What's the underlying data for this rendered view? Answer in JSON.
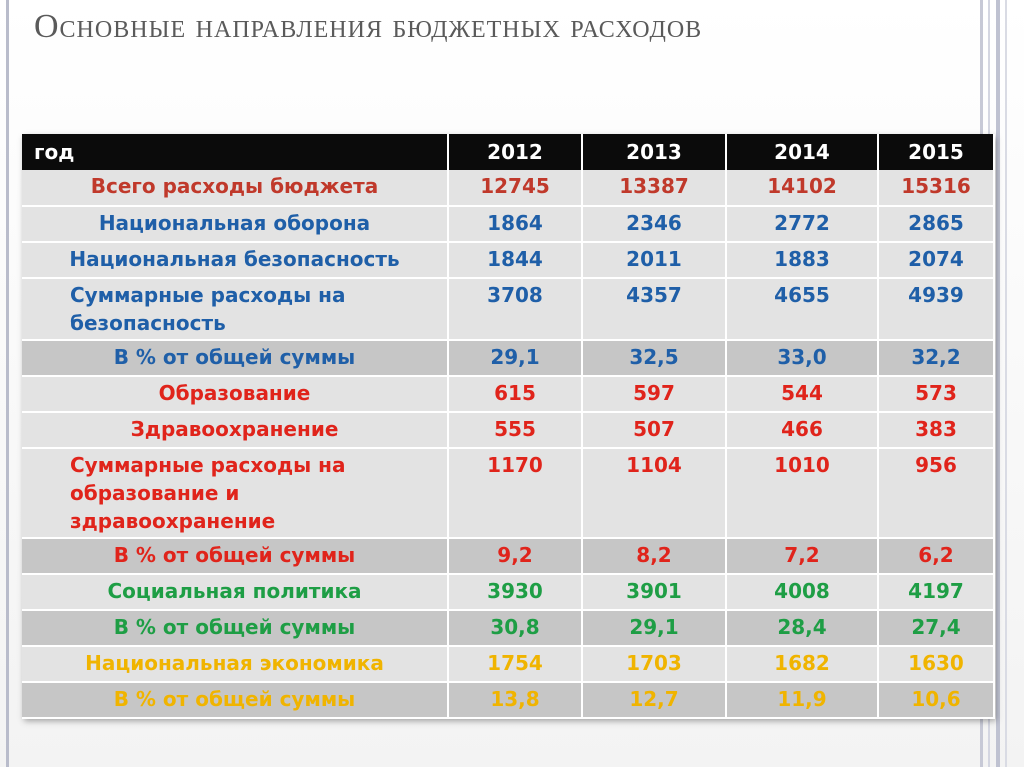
{
  "slide": {
    "title": "Основные направления бюджетных расходов"
  },
  "colors": {
    "header_bg": "#0b0b0b",
    "row_light": "#e3e3e3",
    "row_dark": "#c6c6c6",
    "total_red": "#c0392b",
    "blue": "#1f5fa8",
    "red": "#e0241b",
    "green": "#1e9e45",
    "yellow": "#f0b400"
  },
  "table": {
    "header": [
      "год",
      "2012",
      "2013",
      "2014",
      "2015"
    ],
    "rows": [
      {
        "label": "Всего расходы бюджета",
        "values": [
          "12745",
          "13387",
          "14102",
          "15316"
        ],
        "color": "#c0392b",
        "shade": "light"
      },
      {
        "label": "Национальная оборона",
        "values": [
          "1864",
          "2346",
          "2772",
          "2865"
        ],
        "color": "#1f5fa8",
        "shade": "light"
      },
      {
        "label": "Национальная безопасность",
        "values": [
          "1844",
          "2011",
          "1883",
          "2074"
        ],
        "color": "#1f5fa8",
        "shade": "light"
      },
      {
        "label": "Суммарные расходы на безопасность",
        "values": [
          "3708",
          "4357",
          "4655",
          "4939"
        ],
        "color": "#1f5fa8",
        "shade": "light"
      },
      {
        "label": "В % от общей суммы",
        "values": [
          "29,1",
          "32,5",
          "33,0",
          "32,2"
        ],
        "color": "#1f5fa8",
        "shade": "dark"
      },
      {
        "label": "Образование",
        "values": [
          "615",
          "597",
          "544",
          "573"
        ],
        "color": "#e0241b",
        "shade": "light"
      },
      {
        "label": "Здравоохранение",
        "values": [
          "555",
          "507",
          "466",
          "383"
        ],
        "color": "#e0241b",
        "shade": "light"
      },
      {
        "label": "Суммарные расходы на образование и здравоохранение",
        "values": [
          "1170",
          "1104",
          "1010",
          "956"
        ],
        "color": "#e0241b",
        "shade": "light"
      },
      {
        "label": "В % от общей суммы",
        "values": [
          "9,2",
          "8,2",
          "7,2",
          "6,2"
        ],
        "color": "#e0241b",
        "shade": "dark"
      },
      {
        "label": "Социальная политика",
        "values": [
          "3930",
          "3901",
          "4008",
          "4197"
        ],
        "color": "#1e9e45",
        "shade": "light"
      },
      {
        "label": "В % от общей суммы",
        "values": [
          "30,8",
          "29,1",
          "28,4",
          "27,4"
        ],
        "color": "#1e9e45",
        "shade": "dark"
      },
      {
        "label": "Национальная экономика",
        "values": [
          "1754",
          "1703",
          "1682",
          "1630"
        ],
        "color": "#f0b400",
        "shade": "light"
      },
      {
        "label": "В % от общей суммы",
        "values": [
          "13,8",
          "12,7",
          "11,9",
          "10,6"
        ],
        "color": "#f0b400",
        "shade": "dark"
      }
    ]
  }
}
